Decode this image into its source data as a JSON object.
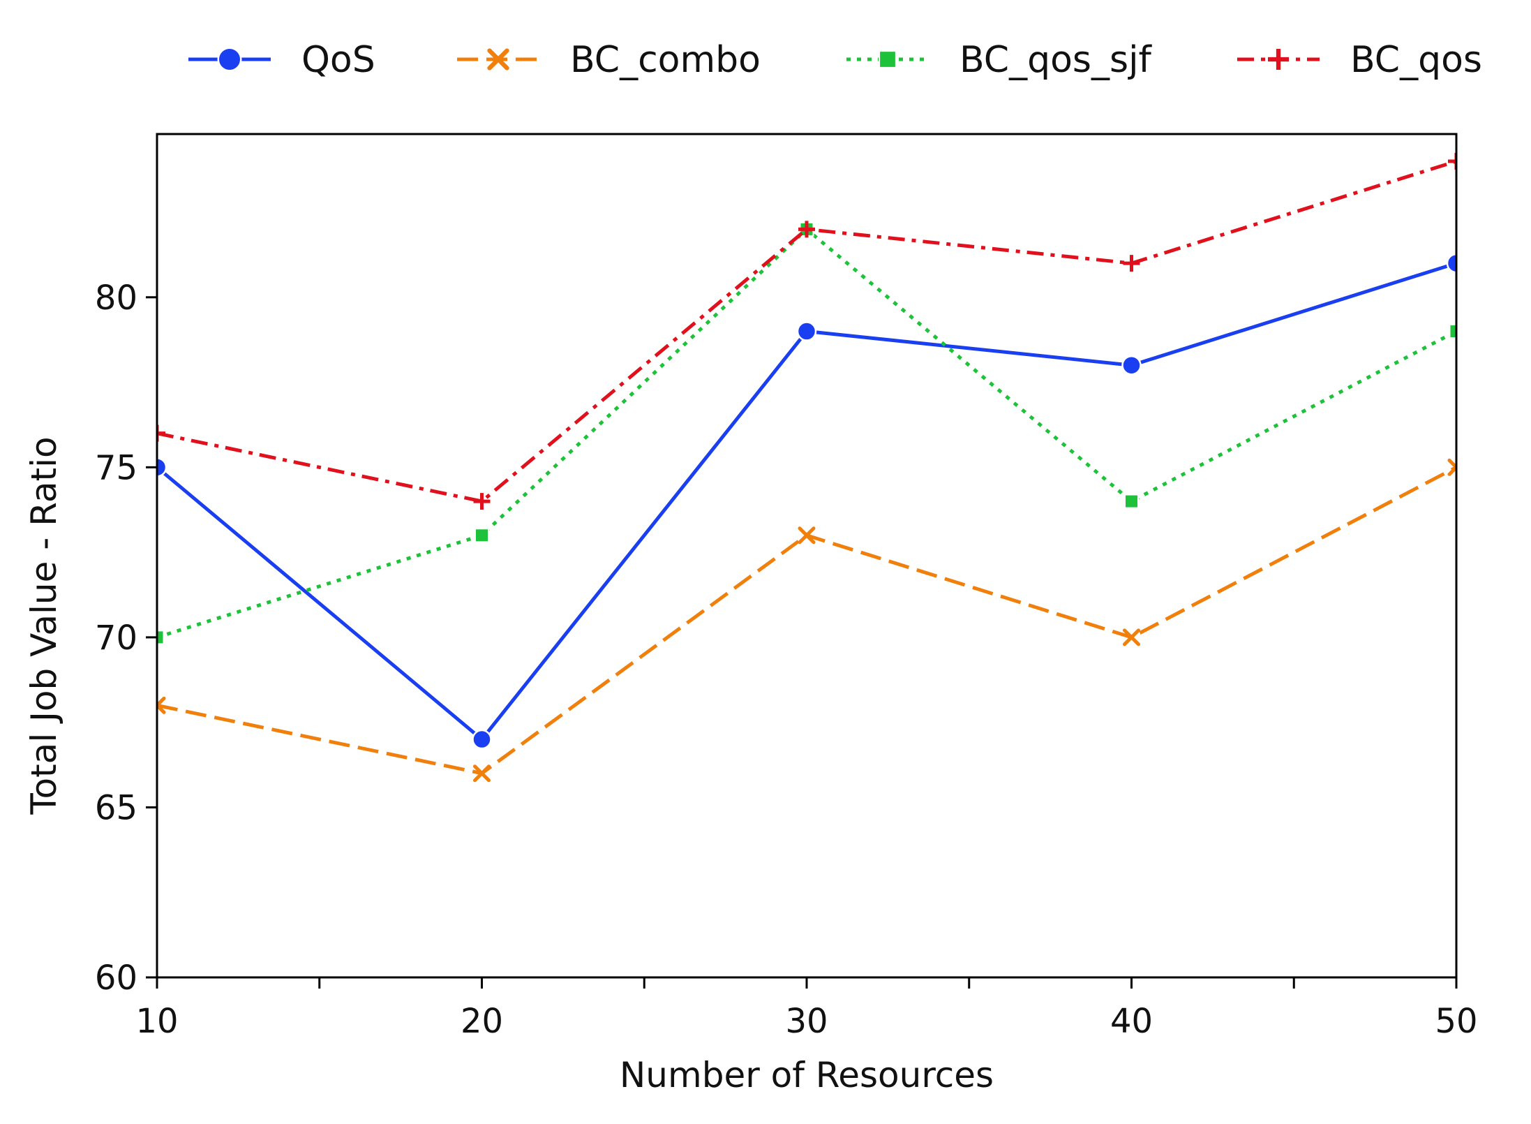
{
  "chart_data": {
    "type": "line",
    "title": "",
    "xlabel": "Number of Resources",
    "ylabel": "Total Job Value - Ratio",
    "x": [
      10,
      20,
      30,
      40,
      50
    ],
    "xticks": [
      10,
      20,
      30,
      40,
      50
    ],
    "xminor_ticks": [
      15,
      25,
      35,
      45
    ],
    "yticks": [
      60,
      65,
      70,
      75,
      80
    ],
    "xlim": [
      10,
      50
    ],
    "ylim": [
      60,
      84.8
    ],
    "grid": false,
    "legend_position": "top-center-outside",
    "series": [
      {
        "name": "QoS",
        "values": [
          75,
          67,
          79,
          78,
          81
        ],
        "color": "#1a3ff0",
        "linestyle": "solid",
        "marker": "circle"
      },
      {
        "name": "BC_combo",
        "values": [
          68,
          66,
          73,
          70,
          75
        ],
        "color": "#f07f0c",
        "linestyle": "dashed",
        "marker": "x"
      },
      {
        "name": "BC_qos_sjf",
        "values": [
          70,
          73,
          82,
          74,
          79
        ],
        "color": "#1ec23a",
        "linestyle": "dotted",
        "marker": "square"
      },
      {
        "name": "BC_qos",
        "values": [
          76,
          74,
          82,
          81,
          84
        ],
        "color": "#e0101c",
        "linestyle": "dashdot",
        "marker": "plus"
      }
    ]
  }
}
